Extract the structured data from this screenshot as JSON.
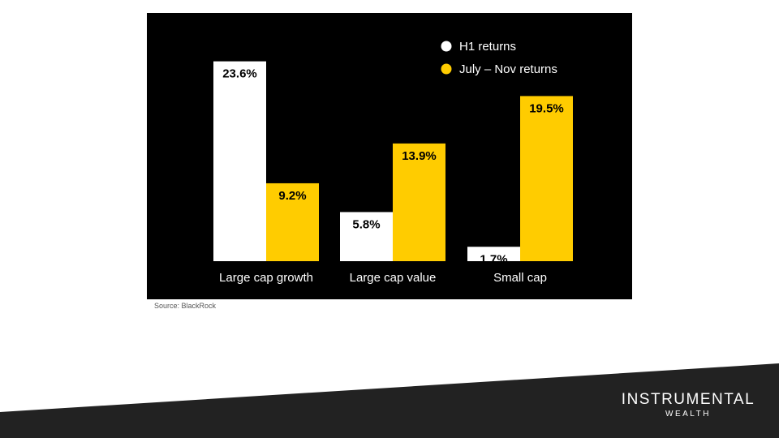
{
  "source_note": "Source: BlackRock",
  "brand": {
    "name": "INSTRUMENTAL",
    "sub": "WEALTH"
  },
  "colors": {
    "panel_bg": "#000000",
    "h1": "#ffffff",
    "jul_nov": "#ffcc00",
    "footer": "#222222"
  },
  "chart_data": {
    "type": "bar",
    "categories": [
      "Large cap growth",
      "Large cap value",
      "Small cap"
    ],
    "series": [
      {
        "name": "H1 returns",
        "values": [
          23.6,
          5.8,
          1.7
        ],
        "labels": [
          "23.6%",
          "5.8%",
          "1.7%"
        ]
      },
      {
        "name": "July – Nov returns",
        "values": [
          9.2,
          13.9,
          19.5
        ],
        "labels": [
          "9.2%",
          "13.9%",
          "19.5%"
        ]
      }
    ],
    "ylim": [
      0,
      25
    ],
    "grid": false,
    "legend": "top-right"
  }
}
